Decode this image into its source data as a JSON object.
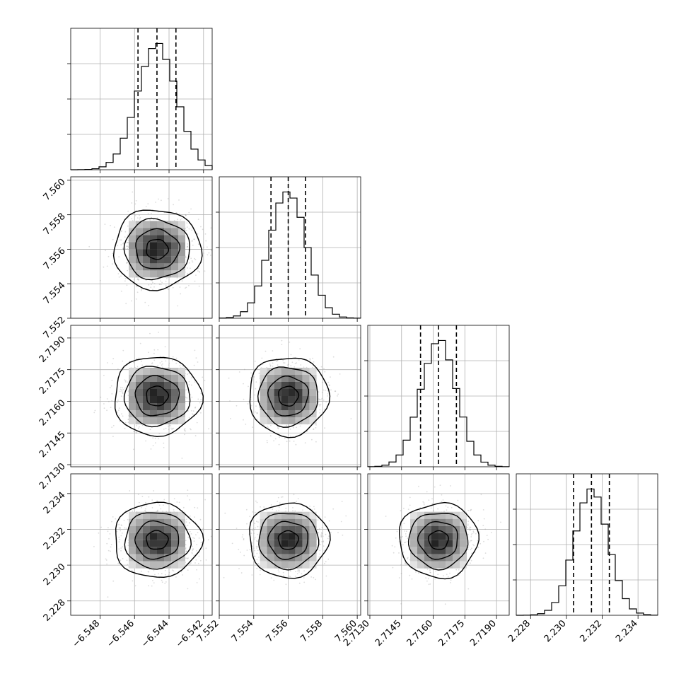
{
  "chart_data": {
    "type": "corner",
    "grid": true,
    "parameters": [
      {
        "range": [
          -6.5497,
          -6.5415
        ],
        "ticks": [
          -6.548,
          -6.546,
          -6.544,
          -6.542
        ],
        "tick_labels": [
          "−6.548",
          "−6.546",
          "−6.544",
          "−6.542"
        ],
        "mean": -6.5447,
        "sigma": 0.00115,
        "quantiles": [
          -6.5458,
          -6.5447,
          -6.5436
        ]
      },
      {
        "range": [
          7.552,
          7.5602
        ],
        "ticks": [
          7.552,
          7.554,
          7.556,
          7.558,
          7.56
        ],
        "tick_labels": [
          "7.552",
          "7.554",
          "7.556",
          "7.558",
          "7.560"
        ],
        "mean": 7.556,
        "sigma": 0.00105,
        "quantiles": [
          7.555,
          7.556,
          7.557
        ]
      },
      {
        "range": [
          2.7129,
          2.7196
        ],
        "ticks": [
          2.713,
          2.7145,
          2.716,
          2.7175,
          2.719
        ],
        "tick_labels": [
          "2.7130",
          "2.7145",
          "2.7160",
          "2.7175",
          "2.7190"
        ],
        "mean": 2.71625,
        "sigma": 0.00085,
        "quantiles": [
          2.7154,
          2.71625,
          2.7171
        ]
      },
      {
        "range": [
          2.2272,
          2.2351
        ],
        "ticks": [
          2.228,
          2.23,
          2.232,
          2.234
        ],
        "tick_labels": [
          "2.228",
          "2.230",
          "2.232",
          "2.234"
        ],
        "mean": 2.2314,
        "sigma": 0.00095,
        "quantiles": [
          2.2304,
          2.2314,
          2.2324
        ]
      }
    ],
    "hist_bins": 20,
    "contour_levels_sigma": [
      0.5,
      1.0,
      1.5,
      2.0
    ],
    "colors": {
      "line": "#000000",
      "grid": "#b0b0b0",
      "points": "#9a9a9a",
      "density_max": "#000000"
    }
  }
}
